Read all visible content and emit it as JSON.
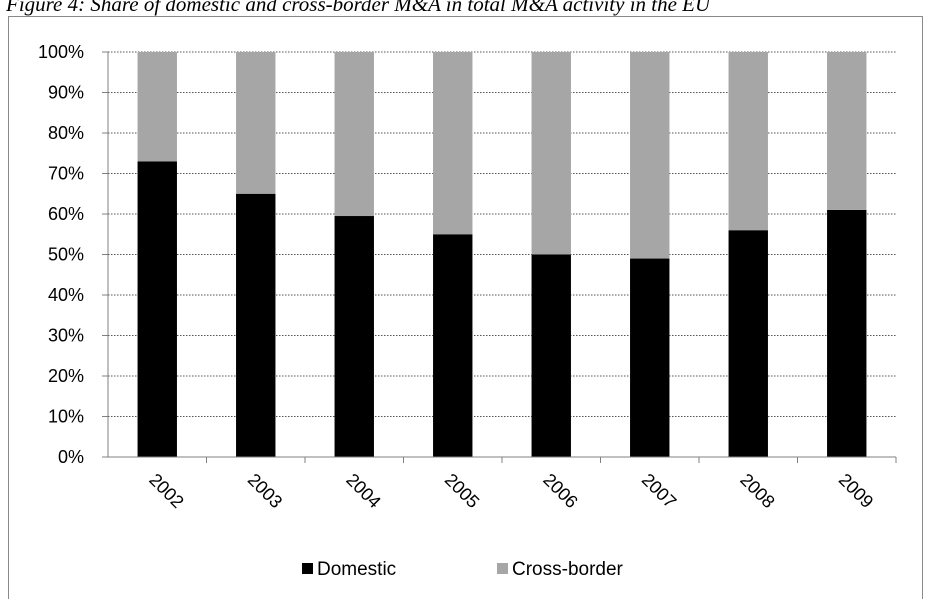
{
  "caption": "Figure 4: Share of domestic and cross-border M&A in total M&A activity in the EU",
  "chart_data": {
    "type": "bar",
    "stacked": true,
    "percent_stacked": true,
    "categories": [
      "2002",
      "2003",
      "2004",
      "2005",
      "2006",
      "2007",
      "2008",
      "2009"
    ],
    "series": [
      {
        "name": "Domestic",
        "color": "#000000",
        "values": [
          73,
          65,
          59.5,
          55,
          50,
          49,
          56,
          61
        ]
      },
      {
        "name": "Cross-border",
        "color": "#a6a6a6",
        "values": [
          27,
          35,
          40.5,
          45,
          50,
          51,
          44,
          39
        ]
      }
    ],
    "ylim": [
      0,
      100
    ],
    "yticks": [
      "0%",
      "10%",
      "20%",
      "30%",
      "40%",
      "50%",
      "60%",
      "70%",
      "80%",
      "90%",
      "100%"
    ],
    "grid": true,
    "grid_style": "dotted",
    "legend_position": "bottom",
    "xlabel": "",
    "ylabel": ""
  }
}
